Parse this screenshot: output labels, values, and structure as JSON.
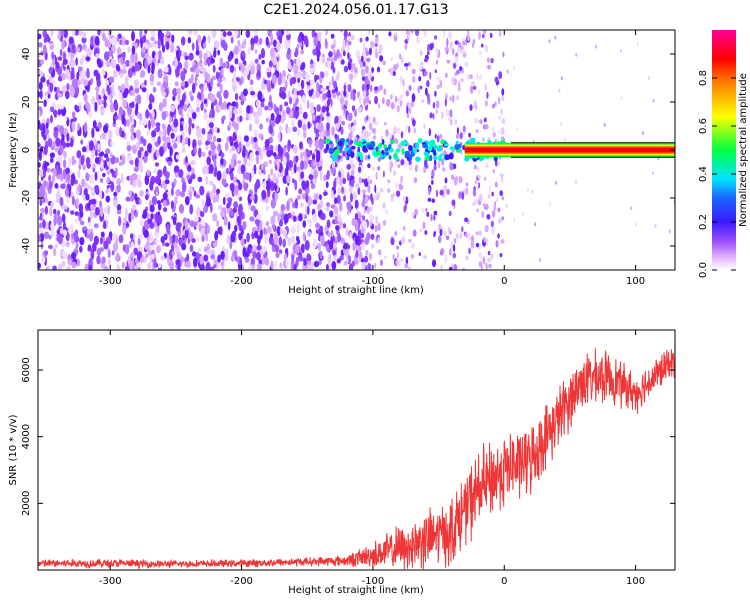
{
  "colors": {
    "snr_line": "#ef3535",
    "spectrogram_colormap": [
      "#ffffff",
      "#e6b8ff",
      "#8a3dff",
      "#1a2bff",
      "#00e5ff",
      "#00ff40",
      "#ffff00",
      "#ff0000",
      "#ff0099"
    ]
  },
  "chart_data": [
    {
      "type": "heatmap",
      "title": "C2E1.2024.056.01.17.G13",
      "xlabel": "Height of straight line (km)",
      "ylabel": "Frequency (Hz)",
      "xlim": [
        -355,
        130
      ],
      "ylim": [
        -50,
        50
      ],
      "xticks": [
        -300,
        -200,
        -100,
        0,
        100
      ],
      "yticks": [
        -40,
        -20,
        0,
        20,
        40
      ],
      "colorbar": {
        "label": "Normalized spectral amplitude",
        "range": [
          0.0,
          1.0
        ],
        "ticks": [
          "0.0",
          "0.2",
          "0.4",
          "0.6",
          "0.8"
        ]
      },
      "signal_band_hz": [
        -3,
        3
      ],
      "features": [
        {
          "x_range_km": [
            -355,
            -135
          ],
          "description": "dense purple noise covering full frequency band"
        },
        {
          "x_range_km": [
            -135,
            -100
          ],
          "description": "noise with onset of signal near 0 Hz"
        },
        {
          "x_range_km": [
            -100,
            0
          ],
          "description": "sparser noise, signal near 0 Hz increasing in amplitude"
        },
        {
          "x_range_km": [
            0,
            130
          ],
          "description": "narrow high-amplitude signal line at 0 Hz"
        }
      ]
    },
    {
      "type": "line",
      "xlabel": "Height of straight line (km)",
      "ylabel": "SNR (10 * v/v)",
      "xlim": [
        -355,
        130
      ],
      "ylim": [
        0,
        7200
      ],
      "xticks": [
        -300,
        -200,
        -100,
        0,
        100
      ],
      "yticks": [
        2000,
        4000,
        6000
      ],
      "series": [
        {
          "x": [
            -355,
            -300,
            -250,
            -200,
            -150,
            -120,
            -100,
            -80,
            -60,
            -40,
            -20,
            0,
            20,
            40,
            60,
            80,
            100,
            120,
            130
          ],
          "y": [
            200,
            200,
            180,
            200,
            250,
            280,
            450,
            650,
            900,
            1200,
            2400,
            3000,
            3300,
            4500,
            5700,
            5800,
            5300,
            6000,
            6300
          ],
          "noise_amplitude": [
            150,
            150,
            130,
            130,
            150,
            200,
            450,
            800,
            1000,
            1200,
            1400,
            1300,
            1200,
            1100,
            1000,
            900,
            700,
            600,
            550
          ]
        }
      ]
    }
  ]
}
